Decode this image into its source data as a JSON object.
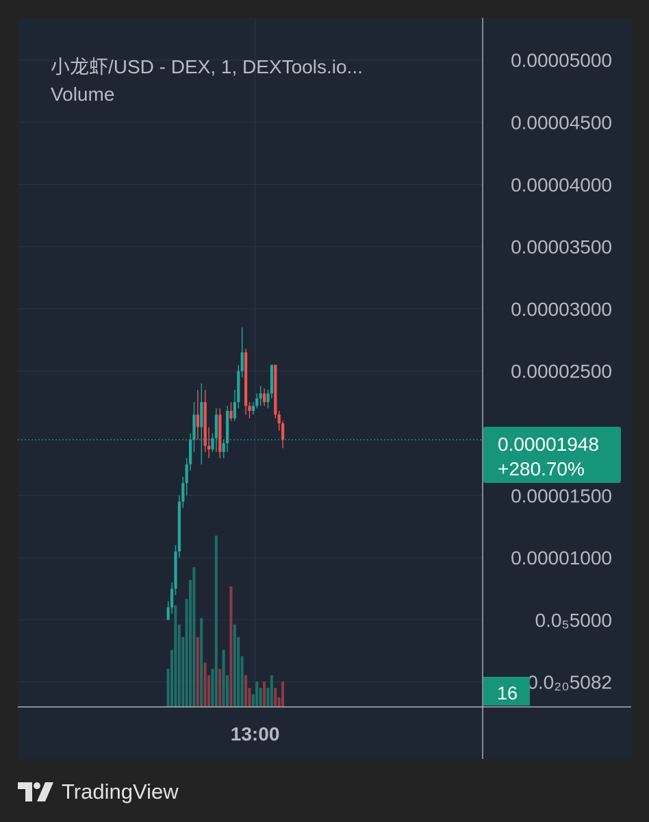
{
  "header": {
    "title": "小龙虾/USD - DEX, 1, DEXTools.io...",
    "volume_label": "Volume"
  },
  "footer": {
    "brand": "TradingView",
    "logo_icon": "tradingview-logo-icon"
  },
  "colors": {
    "background": "#232323",
    "panel": "#1e2634",
    "grid": "#2b3545",
    "axis_text": "#b5b9c0",
    "up": "#26a69a",
    "down": "#ef5350",
    "volume_up": "#1f6e66",
    "volume_down": "#8b3a48",
    "price_tag": "#16957a"
  },
  "chart_data": {
    "type": "candlestick",
    "title": "小龙虾/USD - DEX, 1, DEXTools.io...",
    "y_axis": {
      "ticks": [
        {
          "value": 5e-05,
          "label": "0.00005000"
        },
        {
          "value": 4.5e-05,
          "label": "0.00004500"
        },
        {
          "value": 4e-05,
          "label": "0.00004000"
        },
        {
          "value": 3.5e-05,
          "label": "0.00003500"
        },
        {
          "value": 3e-05,
          "label": "0.00003000"
        },
        {
          "value": 2.5e-05,
          "label": "0.00002500"
        },
        {
          "value": 1.5e-05,
          "label": "0.00001500"
        },
        {
          "value": 1e-05,
          "label": "0.00001000"
        },
        {
          "value": 5e-06,
          "label": "0.0₅5000"
        },
        {
          "value": 5.082e-21,
          "label": "0.0₂₀5082"
        }
      ],
      "ylim": [
        -2e-06,
        5.34e-05
      ]
    },
    "x_axis": {
      "ticks": [
        {
          "index": 23.5,
          "label": "13:00"
        }
      ]
    },
    "current_price": {
      "value": 1.948e-05,
      "label": "0.00001948",
      "change": "+280.70%"
    },
    "volume_tag": "16",
    "candles": [
      {
        "o": 5e-06,
        "h": 6.5e-06,
        "l": 5e-06,
        "c": 6e-06
      },
      {
        "o": 6e-06,
        "h": 8e-06,
        "l": 5.5e-06,
        "c": 7.5e-06
      },
      {
        "o": 7.5e-06,
        "h": 1.1e-05,
        "l": 7e-06,
        "c": 1.05e-05
      },
      {
        "o": 1.05e-05,
        "h": 1.5e-05,
        "l": 1e-05,
        "c": 1.45e-05
      },
      {
        "o": 1.45e-05,
        "h": 1.65e-05,
        "l": 1.4e-05,
        "c": 1.6e-05
      },
      {
        "o": 1.6e-05,
        "h": 1.8e-05,
        "l": 1.5e-05,
        "c": 1.75e-05
      },
      {
        "o": 1.75e-05,
        "h": 2e-05,
        "l": 1.7e-05,
        "c": 1.95e-05
      },
      {
        "o": 1.95e-05,
        "h": 2.25e-05,
        "l": 1.85e-05,
        "c": 2.15e-05
      },
      {
        "o": 2.15e-05,
        "h": 2.35e-05,
        "l": 1.95e-05,
        "c": 2.05e-05
      },
      {
        "o": 2.05e-05,
        "h": 2.4e-05,
        "l": 1.75e-05,
        "c": 2.25e-05
      },
      {
        "o": 2.25e-05,
        "h": 2.35e-05,
        "l": 1.85e-05,
        "c": 1.9e-05
      },
      {
        "o": 1.9e-05,
        "h": 2.05e-05,
        "l": 1.8e-05,
        "c": 1.87e-05
      },
      {
        "o": 1.87e-05,
        "h": 2e-05,
        "l": 1.85e-05,
        "c": 1.96e-05
      },
      {
        "o": 1.96e-05,
        "h": 2.2e-05,
        "l": 1.85e-05,
        "c": 2.15e-05
      },
      {
        "o": 2.15e-05,
        "h": 2.2e-05,
        "l": 1.8e-05,
        "c": 1.85e-05
      },
      {
        "o": 1.85e-05,
        "h": 1.95e-05,
        "l": 1.8e-05,
        "c": 1.92e-05
      },
      {
        "o": 1.92e-05,
        "h": 2.22e-05,
        "l": 1.85e-05,
        "c": 2.18e-05
      },
      {
        "o": 2.18e-05,
        "h": 2.25e-05,
        "l": 2.1e-05,
        "c": 2.12e-05
      },
      {
        "o": 2.12e-05,
        "h": 2.35e-05,
        "l": 2.1e-05,
        "c": 2.25e-05
      },
      {
        "o": 2.25e-05,
        "h": 2.55e-05,
        "l": 2.2e-05,
        "c": 2.5e-05
      },
      {
        "o": 2.5e-05,
        "h": 2.85e-05,
        "l": 2.45e-05,
        "c": 2.65e-05
      },
      {
        "o": 2.65e-05,
        "h": 2.68e-05,
        "l": 2.15e-05,
        "c": 2.22e-05
      },
      {
        "o": 2.22e-05,
        "h": 2.25e-05,
        "l": 2.12e-05,
        "c": 2.18e-05
      },
      {
        "o": 2.18e-05,
        "h": 2.25e-05,
        "l": 2.15e-05,
        "c": 2.22e-05
      },
      {
        "o": 2.22e-05,
        "h": 2.32e-05,
        "l": 2.2e-05,
        "c": 2.28e-05
      },
      {
        "o": 2.28e-05,
        "h": 2.38e-05,
        "l": 2.22e-05,
        "c": 2.32e-05
      },
      {
        "o": 2.32e-05,
        "h": 2.36e-05,
        "l": 2.22e-05,
        "c": 2.25e-05
      },
      {
        "o": 2.25e-05,
        "h": 2.35e-05,
        "l": 2.2e-05,
        "c": 2.32e-05
      },
      {
        "o": 2.32e-05,
        "h": 2.55e-05,
        "l": 2.28e-05,
        "c": 2.55e-05
      },
      {
        "o": 2.55e-05,
        "h": 2.55e-05,
        "l": 2.12e-05,
        "c": 2.15e-05
      },
      {
        "o": 2.15e-05,
        "h": 2.18e-05,
        "l": 2.02e-05,
        "c": 2.08e-05
      },
      {
        "o": 2.08e-05,
        "h": 2.1e-05,
        "l": 1.88e-05,
        "c": 1.95e-05
      }
    ],
    "volumes": [
      6,
      9,
      16,
      13,
      11,
      17,
      20,
      22,
      11,
      14,
      7,
      5,
      6,
      27,
      6,
      9,
      5,
      19,
      13,
      11,
      8,
      5,
      3,
      2,
      4,
      3,
      4,
      3,
      5,
      3,
      1.5,
      4
    ]
  }
}
